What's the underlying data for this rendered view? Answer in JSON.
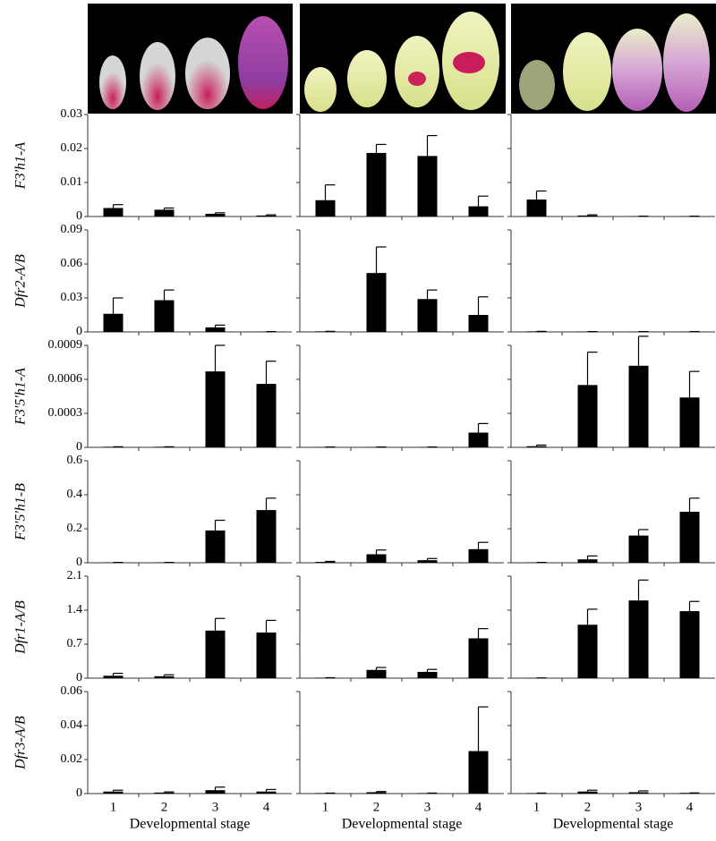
{
  "chart_data": [
    {
      "type": "bar",
      "ylabel": "F3'h1-A",
      "categories": [
        "1",
        "2",
        "3",
        "4"
      ],
      "ylim": [
        0,
        0.03
      ],
      "yticks": [
        0,
        0.01,
        0.02,
        0.03
      ],
      "color": "#000000",
      "panels": [
        {
          "values": [
            0.0025,
            0.002,
            0.0008,
            0.0003
          ],
          "errors": [
            0.001,
            0.0005,
            0.0003,
            0.0002
          ]
        },
        {
          "values": [
            0.0048,
            0.0187,
            0.0178,
            0.003
          ],
          "errors": [
            0.0045,
            0.0025,
            0.006,
            0.003
          ]
        },
        {
          "values": [
            0.005,
            0.0003,
            0.0001,
            0.0001
          ],
          "errors": [
            0.0025,
            0.0002,
            0,
            0
          ]
        }
      ]
    },
    {
      "type": "bar",
      "ylabel": "Dfr2-A/B",
      "categories": [
        "1",
        "2",
        "3",
        "4"
      ],
      "ylim": [
        0,
        0.09
      ],
      "yticks": [
        0,
        0.03,
        0.06,
        0.09
      ],
      "color": "#000000",
      "panels": [
        {
          "values": [
            0.016,
            0.028,
            0.004,
            0.0003
          ],
          "errors": [
            0.014,
            0.009,
            0.002,
            0
          ]
        },
        {
          "values": [
            0.0005,
            0.052,
            0.029,
            0.015
          ],
          "errors": [
            0,
            0.023,
            0.008,
            0.016
          ]
        },
        {
          "values": [
            0.0005,
            0.0003,
            0.0003,
            0.0003
          ],
          "errors": [
            0,
            0,
            0,
            0
          ]
        }
      ]
    },
    {
      "type": "bar",
      "ylabel": "F3'5'h1-A",
      "categories": [
        "1",
        "2",
        "3",
        "4"
      ],
      "ylim": [
        0,
        0.0009
      ],
      "yticks": [
        0,
        0.0003,
        0.0006,
        0.0009
      ],
      "color": "#000000",
      "panels": [
        {
          "values": [
            5e-06,
            5e-06,
            0.00067,
            0.00056
          ],
          "errors": [
            0,
            0,
            0.00023,
            0.0002
          ]
        },
        {
          "values": [
            3e-06,
            3e-06,
            3e-06,
            0.00013
          ],
          "errors": [
            0,
            0,
            0,
            8e-05
          ]
        },
        {
          "values": [
            1e-05,
            0.00055,
            0.00072,
            0.00044
          ],
          "errors": [
            1e-05,
            0.00029,
            0.00026,
            0.00023
          ]
        }
      ]
    },
    {
      "type": "bar",
      "ylabel": "F3'5'h1-B",
      "categories": [
        "1",
        "2",
        "3",
        "4"
      ],
      "ylim": [
        0,
        0.6
      ],
      "yticks": [
        0,
        0.2,
        0.4,
        0.6
      ],
      "color": "#000000",
      "panels": [
        {
          "values": [
            0.002,
            0.002,
            0.19,
            0.31
          ],
          "errors": [
            0,
            0,
            0.06,
            0.07
          ]
        },
        {
          "values": [
            0.005,
            0.05,
            0.015,
            0.08
          ],
          "errors": [
            0.003,
            0.025,
            0.01,
            0.04
          ]
        },
        {
          "values": [
            0.002,
            0.02,
            0.16,
            0.3
          ],
          "errors": [
            0,
            0.02,
            0.035,
            0.08
          ]
        }
      ]
    },
    {
      "type": "bar",
      "ylabel": "Dfr1-A/B",
      "categories": [
        "1",
        "2",
        "3",
        "4"
      ],
      "ylim": [
        0,
        2.1
      ],
      "yticks": [
        0,
        0.7,
        1.4,
        2.1
      ],
      "color": "#000000",
      "panels": [
        {
          "values": [
            0.05,
            0.04,
            0.98,
            0.94
          ],
          "errors": [
            0.05,
            0.03,
            0.25,
            0.25
          ]
        },
        {
          "values": [
            0.01,
            0.17,
            0.13,
            0.82
          ],
          "errors": [
            0,
            0.05,
            0.05,
            0.2
          ]
        },
        {
          "values": [
            0.005,
            1.1,
            1.6,
            1.38
          ],
          "errors": [
            0,
            0.32,
            0.42,
            0.2
          ]
        }
      ]
    },
    {
      "type": "bar",
      "ylabel": "Dfr3-A/B",
      "categories": [
        "1",
        "2",
        "3",
        "4"
      ],
      "ylim": [
        0,
        0.06
      ],
      "yticks": [
        0,
        0.02,
        0.04,
        0.06
      ],
      "color": "#000000",
      "xlabel": "Developmental stage",
      "panels": [
        {
          "values": [
            0.0012,
            0.0006,
            0.002,
            0.0012
          ],
          "errors": [
            0.0008,
            0.0004,
            0.0018,
            0.0012
          ]
        },
        {
          "values": [
            0.0003,
            0.0008,
            0.0003,
            0.025
          ],
          "errors": [
            0,
            0.0004,
            0,
            0.026
          ]
        },
        {
          "values": [
            0.0003,
            0.0012,
            0.0008,
            0.0004
          ],
          "errors": [
            0,
            0.0008,
            0.0008,
            0
          ]
        }
      ]
    }
  ]
}
